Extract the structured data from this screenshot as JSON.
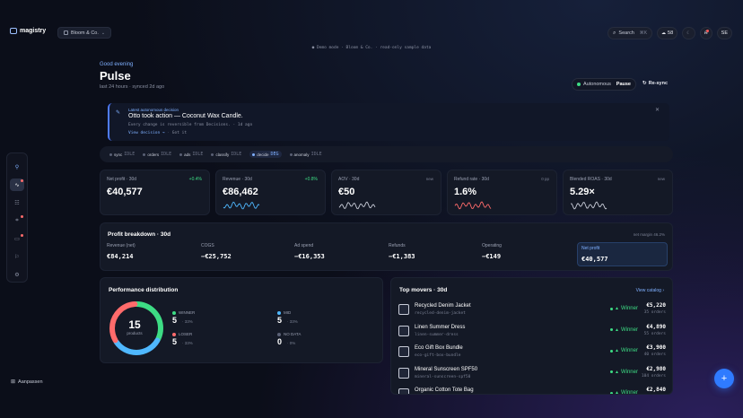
{
  "topbar": {
    "brand": "magistry",
    "org": "Bloom & Co.",
    "search_label": "Search",
    "search_shortcut": "⌘K",
    "credits": "58",
    "avatar_initials": "SE"
  },
  "demo_note": "● Demo mode · Bloom & Co. · read-only sample data",
  "header": {
    "greeting": "Good evening",
    "title": "Pulse",
    "subtitle": "last 24 hours · synced 2d ago",
    "autonomy_label": "Autonomous",
    "pause_label": "Pause",
    "resync_label": "Re-sync"
  },
  "banner": {
    "tag": "Latest autonomous decision",
    "prefix": "Otto took action — ",
    "product": "Coconut Wax Candle.",
    "detail": "Every change is reversible from Decisions. · 1d ago",
    "view_link": "View decision →",
    "dismiss_link": "Got it"
  },
  "pipeline": [
    {
      "name": "sync",
      "state": "IDLE"
    },
    {
      "name": "orders",
      "state": "IDLE"
    },
    {
      "name": "ads",
      "state": "IDLE"
    },
    {
      "name": "classify",
      "state": "IDLE"
    },
    {
      "name": "decide",
      "state": "DEG"
    },
    {
      "name": "anomaly",
      "state": "IDLE"
    }
  ],
  "kpis": [
    {
      "label": "Net profit · 30d",
      "value": "€40,577",
      "delta": "+0.4%"
    },
    {
      "label": "Revenue · 30d",
      "value": "€86,462",
      "delta": "+0.8%"
    },
    {
      "label": "AOV · 30d",
      "value": "€50",
      "delta": "new"
    },
    {
      "label": "Refund rate · 30d",
      "value": "1.6%",
      "delta": "0 pp"
    },
    {
      "label": "Blended ROAS · 30d",
      "value": "5.29×",
      "delta": "new"
    }
  ],
  "breakdown": {
    "title": "Profit breakdown · 30d",
    "net_margin": "net margin 46.2%",
    "items": [
      {
        "label": "Revenue (net)",
        "value": "€84,214"
      },
      {
        "label": "COGS",
        "value": "−€25,752"
      },
      {
        "label": "Ad spend",
        "value": "−€16,353"
      },
      {
        "label": "Refunds",
        "value": "−€1,383"
      },
      {
        "label": "Operating",
        "value": "−€149"
      },
      {
        "label": "Net profit",
        "value": "€40,577"
      }
    ]
  },
  "performance": {
    "title": "Performance distribution",
    "total": "15",
    "unit": "products",
    "segments": [
      {
        "name": "WINNER",
        "count": "5",
        "pct": "33%",
        "color": "#3ddc84"
      },
      {
        "name": "LOSER",
        "count": "5",
        "pct": "33%",
        "color": "#ff6b6b"
      },
      {
        "name": "MID",
        "count": "5",
        "pct": "33%",
        "color": "#4fb8ff"
      },
      {
        "name": "NO DATA",
        "count": "0",
        "pct": "0%",
        "color": "#5a6075"
      }
    ]
  },
  "movers": {
    "title": "Top movers · 30d",
    "view_link": "View catalog ›",
    "items": [
      {
        "name": "Recycled Denim Jacket",
        "slug": "recycled-denim-jacket",
        "badge": "Winner",
        "amount": "€5,220",
        "orders": "35 orders"
      },
      {
        "name": "Linen Summer Dress",
        "slug": "linen-summer-dress",
        "badge": "Winner",
        "amount": "€4,890",
        "orders": "55 orders"
      },
      {
        "name": "Eco Gift Box Bundle",
        "slug": "eco-gift-box-bundle",
        "badge": "Winner",
        "amount": "€3,900",
        "orders": "40 orders"
      },
      {
        "name": "Mineral Sunscreen SPF50",
        "slug": "mineral-sunscreen-spf50",
        "badge": "Winner",
        "amount": "€2,980",
        "orders": "104 orders"
      },
      {
        "name": "Organic Cotton Tote Bag",
        "slug": "",
        "badge": "Winner",
        "amount": "€2,840",
        "orders": ""
      }
    ]
  },
  "sidebar": {
    "customize_label": "Aanpassen"
  }
}
